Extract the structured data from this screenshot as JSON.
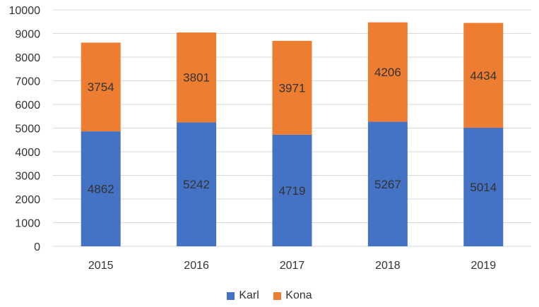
{
  "chart_data": {
    "type": "bar",
    "stacked": true,
    "categories": [
      "2015",
      "2016",
      "2017",
      "2018",
      "2019"
    ],
    "series": [
      {
        "name": "Karl",
        "color": "#4472C4",
        "values": [
          4862,
          5242,
          4719,
          5267,
          5014
        ]
      },
      {
        "name": "Kona",
        "color": "#ED7D31",
        "values": [
          3754,
          3801,
          3971,
          4206,
          4434
        ]
      }
    ],
    "ylim": [
      0,
      10000
    ],
    "yticks": [
      "0",
      "1000",
      "2000",
      "3000",
      "4000",
      "5000",
      "6000",
      "7000",
      "8000",
      "9000",
      "10000"
    ],
    "grid": true,
    "legend": "bottom",
    "title": "",
    "xlabel": "",
    "ylabel": ""
  }
}
